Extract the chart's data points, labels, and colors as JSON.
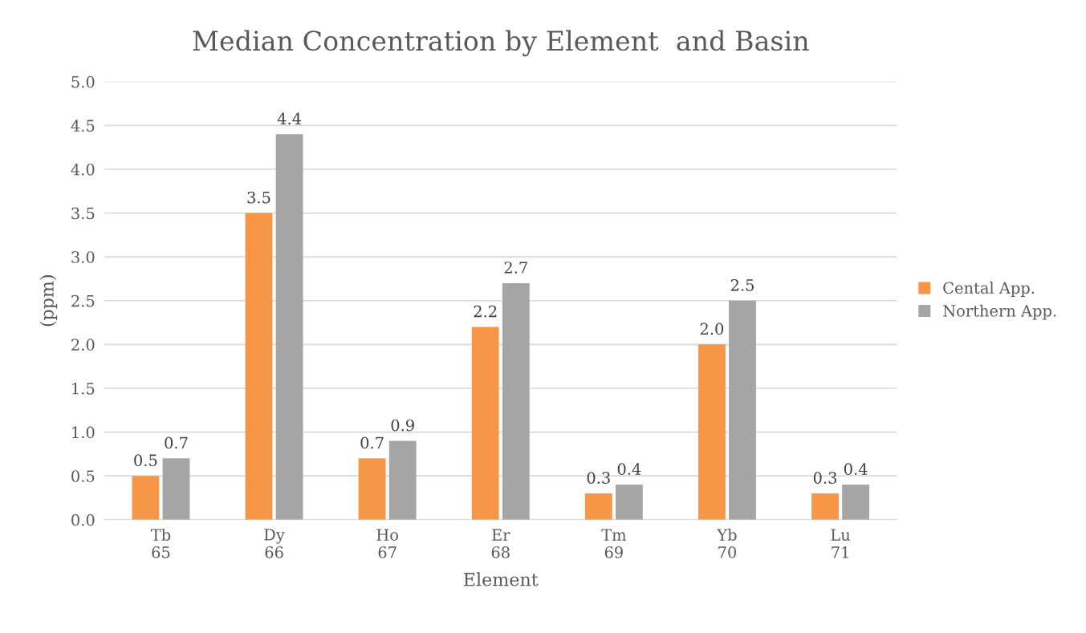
{
  "chart_data": {
    "type": "bar",
    "title": "Median Concentration by Element  and Basin",
    "xlabel": "Element",
    "ylabel": "(ppm)",
    "categories": [
      "Tb\n65",
      "Dy\n66",
      "Ho\n67",
      "Er\n68",
      "Tm\n69",
      "Yb\n70",
      "Lu\n71"
    ],
    "series": [
      {
        "name": "Cental App.",
        "color": "#f79646",
        "values": [
          0.5,
          3.5,
          0.7,
          2.2,
          0.3,
          2.0,
          0.3
        ],
        "value_labels": [
          "0.5",
          "3.5",
          "0.7",
          "2.2",
          "0.3",
          "2.0",
          "0.3"
        ]
      },
      {
        "name": "Northern App.",
        "color": "#a5a5a5",
        "values": [
          0.7,
          4.4,
          0.9,
          2.7,
          0.4,
          2.5,
          0.4
        ],
        "value_labels": [
          "0.7",
          "4.4",
          "0.9",
          "2.7",
          "0.4",
          "2.5",
          "0.4"
        ]
      }
    ],
    "ylim": [
      0,
      5
    ],
    "yticks": [
      {
        "value": 0,
        "label": "0.0"
      },
      {
        "value": 0.5,
        "label": "0.5"
      },
      {
        "value": 1,
        "label": "1.0"
      },
      {
        "value": 1.5,
        "label": "1.5"
      },
      {
        "value": 2,
        "label": "2.0"
      },
      {
        "value": 2.5,
        "label": "2.5"
      },
      {
        "value": 3,
        "label": "3.0"
      },
      {
        "value": 3.5,
        "label": "3.5"
      },
      {
        "value": 4,
        "label": "4.0"
      },
      {
        "value": 4.5,
        "label": "4.5"
      },
      {
        "value": 5,
        "label": "5.0"
      }
    ],
    "grid": "y",
    "legend": "right"
  }
}
